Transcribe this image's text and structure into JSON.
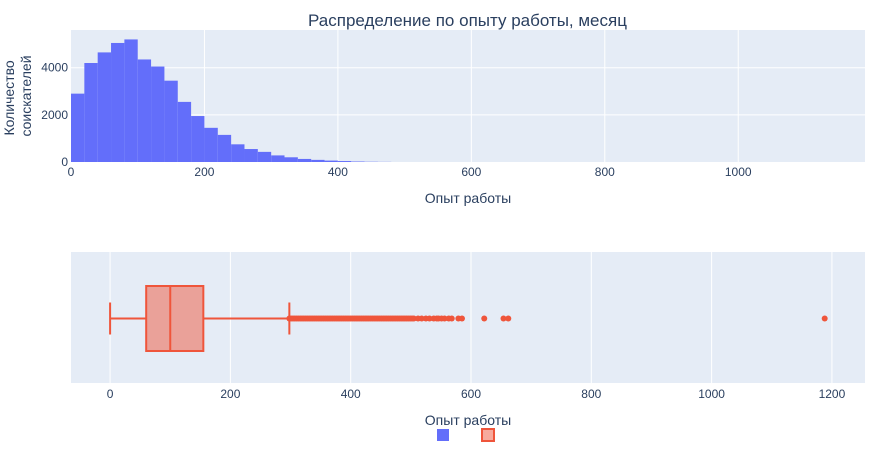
{
  "chart_data": [
    {
      "type": "bar",
      "subtype": "histogram",
      "title": "Распределение по опыту работы, месяц",
      "xlabel": "Опыт работы",
      "ylabel_lines": [
        "Количество",
        "соискателей"
      ],
      "xlim": [
        0,
        1190
      ],
      "ylim": [
        0,
        5600
      ],
      "xticks": [
        0,
        200,
        400,
        600,
        800,
        1000
      ],
      "yticks": [
        0,
        2000,
        4000
      ],
      "grid": true,
      "bin_width": 20,
      "bin_starts": [
        0,
        20,
        40,
        60,
        80,
        100,
        120,
        140,
        160,
        180,
        200,
        220,
        240,
        260,
        280,
        300,
        320,
        340,
        360,
        380,
        400,
        420,
        440,
        460
      ],
      "values": [
        2900,
        4200,
        4650,
        5050,
        5200,
        4350,
        4050,
        3450,
        2550,
        1950,
        1450,
        1150,
        750,
        550,
        430,
        280,
        200,
        130,
        90,
        60,
        40,
        20,
        10,
        5
      ],
      "color": "#636efa"
    },
    {
      "type": "box",
      "xlabel": "Опыт работы",
      "xlim": [
        -65,
        1255
      ],
      "xticks": [
        0,
        200,
        400,
        600,
        800,
        1000,
        1200
      ],
      "grid": true,
      "min": 0,
      "q1": 60,
      "median": 100,
      "q3": 155,
      "whisker_high": 298,
      "outlier_range": [
        298,
        506
      ],
      "outliers": [
        512,
        518,
        525,
        531,
        538,
        543,
        546,
        551,
        556,
        563,
        568,
        579,
        585,
        622,
        654,
        662,
        1188
      ],
      "color": "#ef553b"
    }
  ],
  "legend": {
    "position": "bottom-center",
    "items": [
      {
        "color": "#636efa",
        "kind": "bar"
      },
      {
        "color": "#ef553b",
        "kind": "box"
      }
    ]
  }
}
